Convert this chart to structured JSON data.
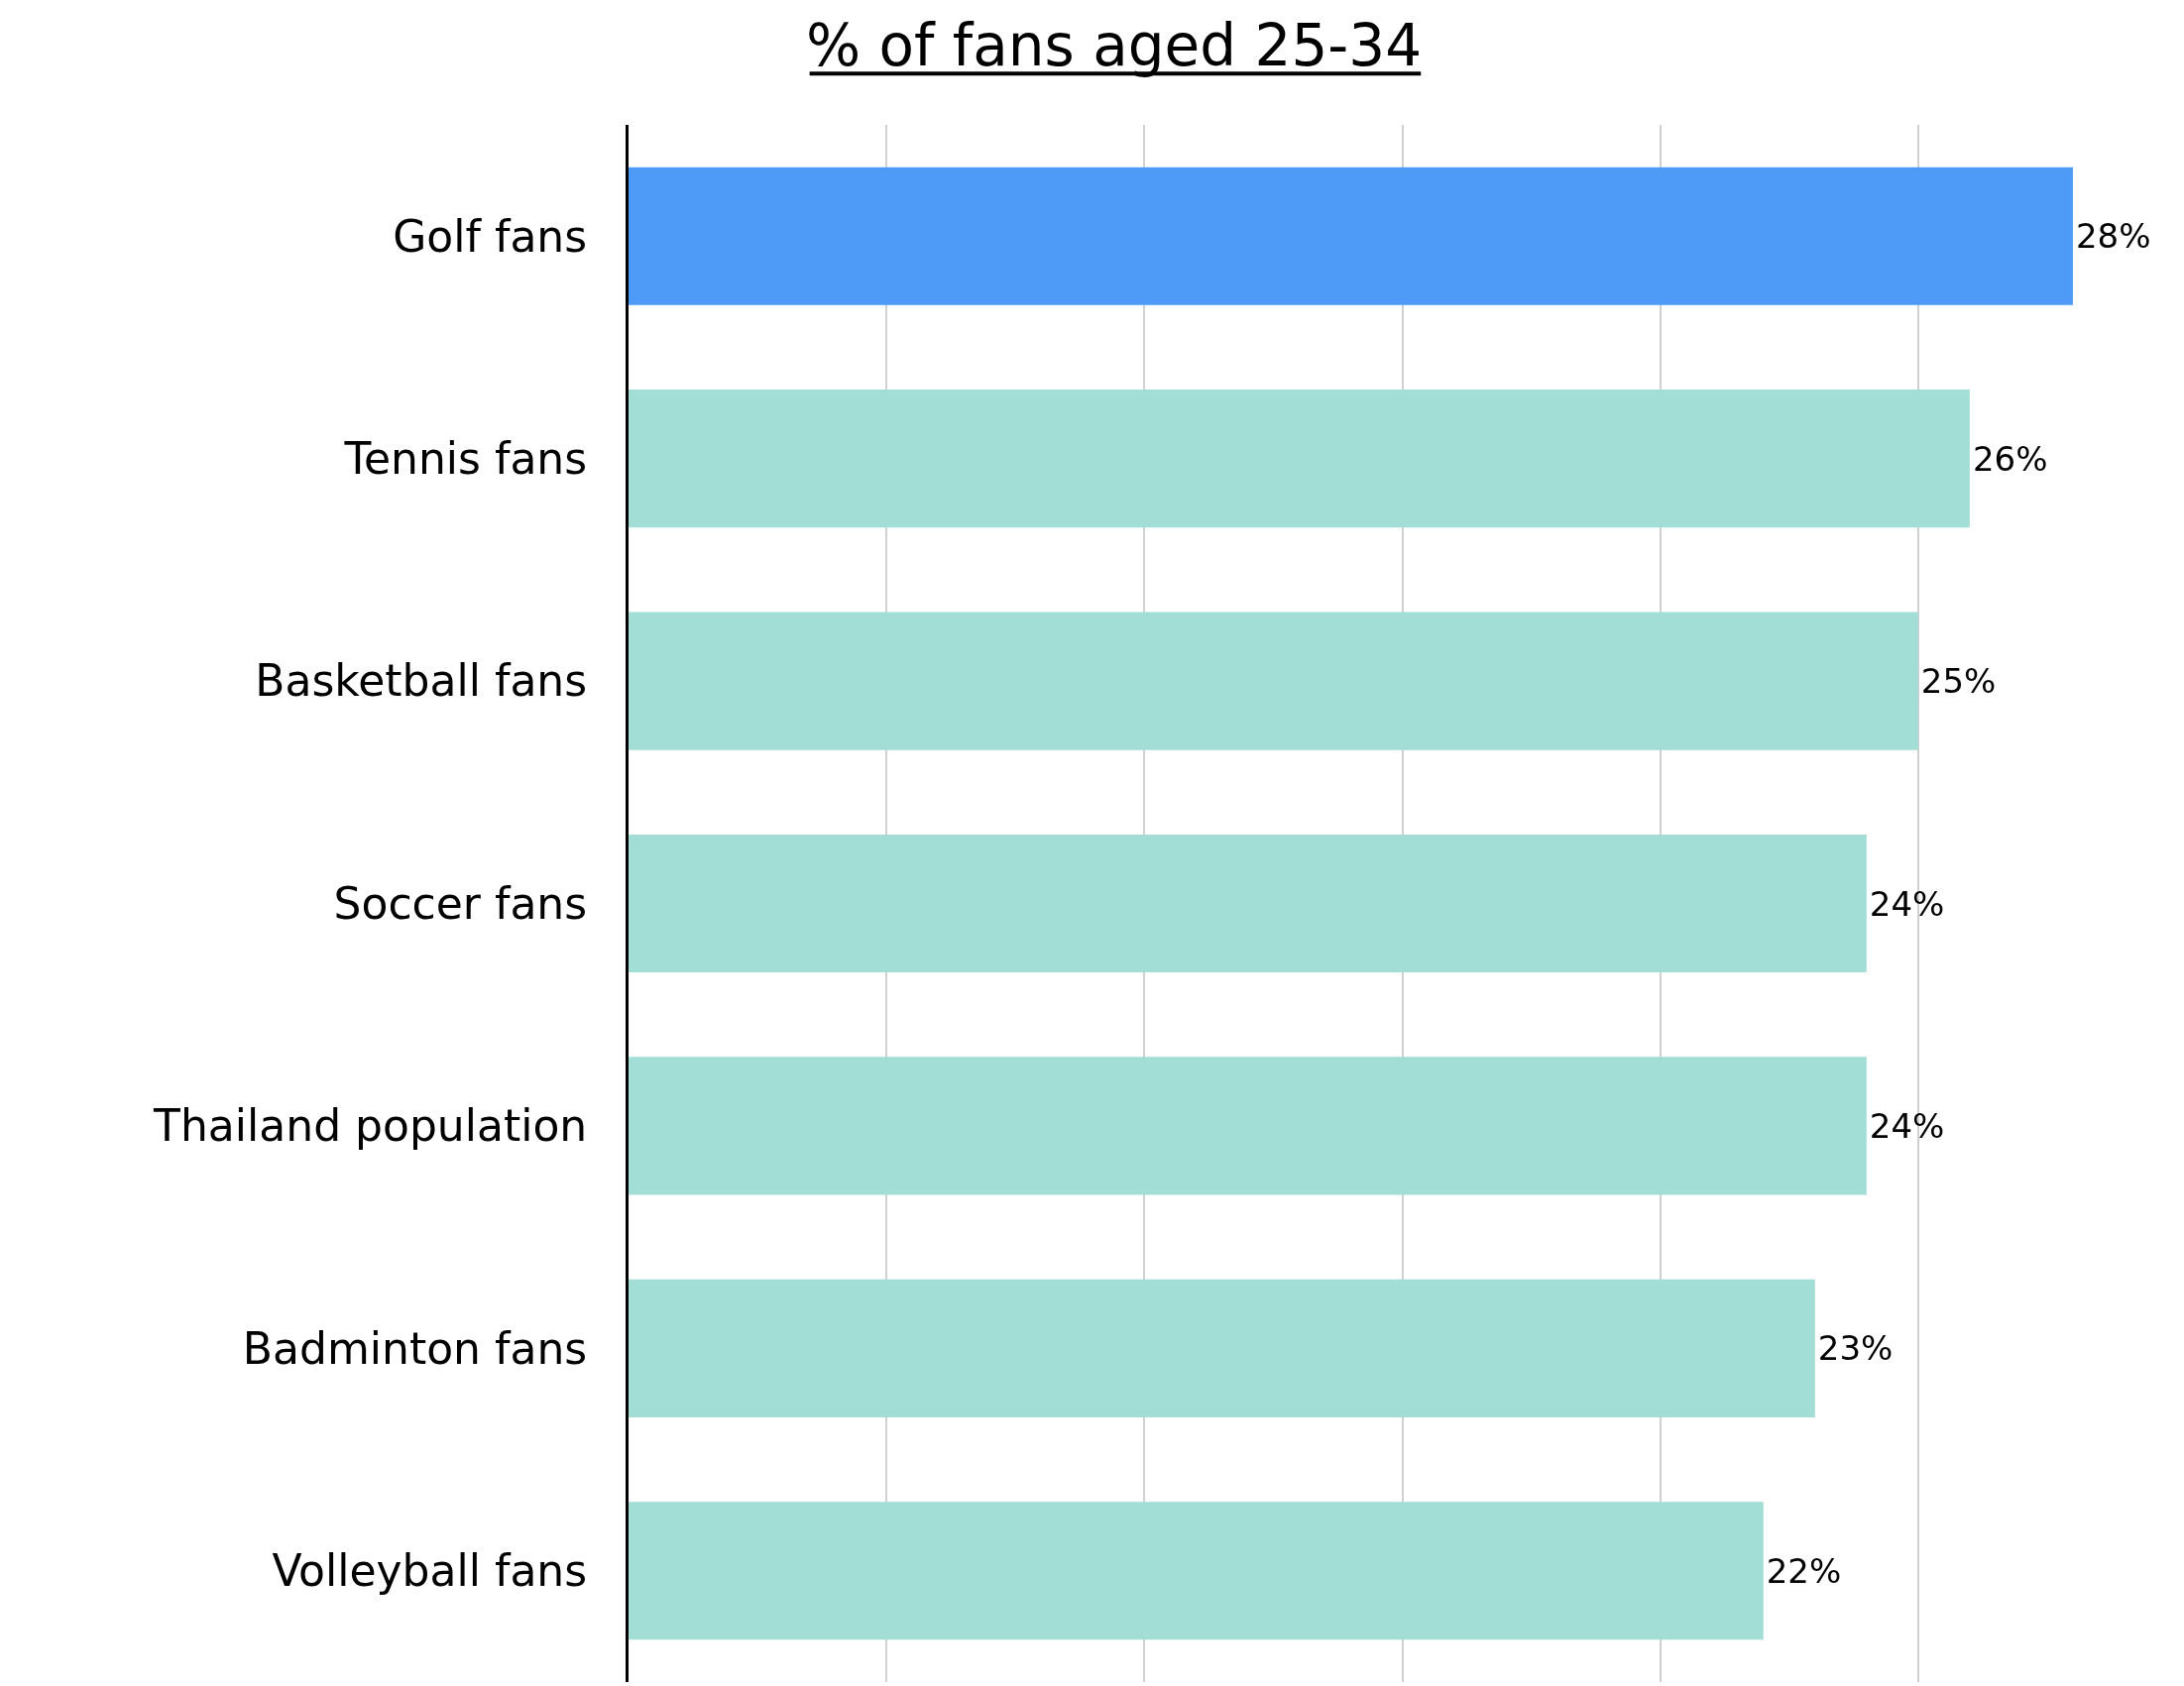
{
  "chart_data": {
    "type": "bar",
    "orientation": "horizontal",
    "title": "% of fans aged 25-34",
    "categories": [
      "Golf fans",
      "Tennis fans",
      "Basketball fans",
      "Soccer fans",
      "Thailand population",
      "Badminton fans",
      "Volleyball fans"
    ],
    "values": [
      28,
      26,
      25,
      24,
      24,
      23,
      22
    ],
    "value_labels": [
      "28%",
      "26%",
      "25%",
      "24%",
      "24%",
      "23%",
      "22%"
    ],
    "colors": [
      "#4d9af7",
      "#a2ded5",
      "#a2ded5",
      "#a2ded5",
      "#a2ded5",
      "#a2ded5",
      "#a2ded5"
    ],
    "xlim": [
      0,
      30
    ],
    "xticks": [
      {
        "value": 0,
        "label": null
      },
      {
        "value": 5,
        "label": null
      },
      {
        "value": 10,
        "label": null
      },
      {
        "value": 15,
        "label": null
      },
      {
        "value": 20,
        "label": null
      },
      {
        "value": 25,
        "label": null
      }
    ],
    "grid": "x",
    "tick_labels": "y"
  }
}
